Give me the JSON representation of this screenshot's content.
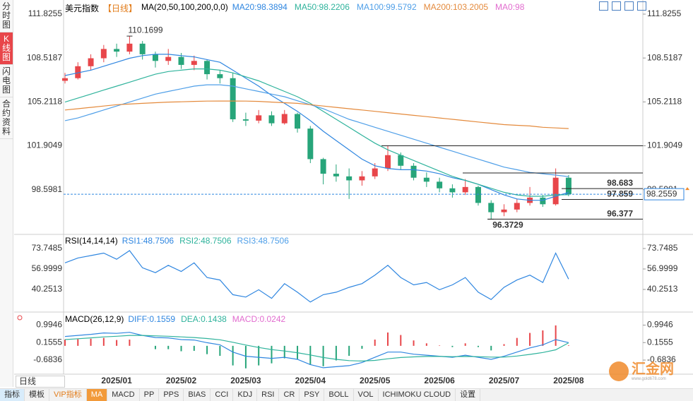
{
  "sidebar": {
    "tabs": [
      "分时图",
      "K线图",
      "闪电图",
      "合约资料"
    ]
  },
  "toolbar": {
    "period": "日线",
    "tabs": [
      "指标",
      "模板",
      "VIP指标",
      "MA",
      "MACD",
      "PP",
      "PPS",
      "BIAS",
      "CCI",
      "KDJ",
      "RSI",
      "CR",
      "PSY",
      "BOLL",
      "VOL",
      "ICHIMOKU CLOUD",
      "设置"
    ]
  },
  "watermark": {
    "text": "汇金网",
    "url": "www.gold678.com"
  },
  "chart_data": [
    {
      "type": "candlestick",
      "symbol": "美元指数",
      "period": "【日线】",
      "ma_label": "MA(20,50,100,200,0,0)",
      "categories": [
        null,
        null,
        null,
        null,
        "2025/01",
        null,
        null,
        null,
        null,
        "2025/02",
        null,
        null,
        null,
        null,
        "2025/03",
        null,
        null,
        null,
        null,
        "2025/04",
        null,
        null,
        null,
        null,
        "2025/05",
        null,
        null,
        null,
        null,
        "2025/06",
        null,
        null,
        null,
        null,
        "2025/07",
        null,
        null,
        null,
        null,
        "2025/08"
      ],
      "open": [
        106.8,
        107.0,
        107.9,
        108.5,
        109.2,
        109.0,
        109.6,
        108.8,
        108.3,
        108.6,
        108.0,
        108.3,
        107.3,
        107.0,
        103.9,
        103.8,
        104.2,
        103.6,
        104.3,
        103.2,
        100.9,
        99.8,
        99.6,
        99.3,
        99.6,
        100.2,
        101.2,
        100.4,
        99.5,
        99.2,
        98.7,
        98.4,
        98.8,
        97.6,
        96.9,
        97.1,
        97.6,
        98.0,
        97.5,
        99.5
      ],
      "high": [
        107.4,
        108.2,
        108.8,
        109.5,
        109.6,
        110.1699,
        109.8,
        109.0,
        109.2,
        108.9,
        108.7,
        108.4,
        107.6,
        107.4,
        104.4,
        104.6,
        104.5,
        104.6,
        104.4,
        103.4,
        101.0,
        100.5,
        100.2,
        100.0,
        100.6,
        101.9,
        101.4,
        100.6,
        99.9,
        99.5,
        99.0,
        99.4,
        98.9,
        97.8,
        97.5,
        97.9,
        98.8,
        98.2,
        100.2,
        99.7
      ],
      "low": [
        106.6,
        106.9,
        107.6,
        108.2,
        108.6,
        108.8,
        108.4,
        107.8,
        108.0,
        107.7,
        107.6,
        106.9,
        106.6,
        103.7,
        103.4,
        103.6,
        103.4,
        103.5,
        102.9,
        100.6,
        99.0,
        99.2,
        97.9,
        98.9,
        99.4,
        100.0,
        100.1,
        99.3,
        98.8,
        98.4,
        98.0,
        98.2,
        97.4,
        96.3729,
        96.6,
        96.9,
        97.4,
        97.3,
        97.4,
        98.1
      ],
      "close": [
        107.0,
        107.9,
        108.5,
        109.2,
        109.0,
        109.6,
        108.8,
        108.3,
        108.6,
        108.0,
        108.3,
        107.3,
        107.0,
        103.9,
        103.8,
        104.2,
        103.6,
        104.3,
        103.2,
        100.9,
        99.8,
        99.6,
        99.3,
        99.6,
        100.2,
        101.2,
        100.4,
        99.5,
        99.2,
        98.7,
        98.4,
        98.8,
        97.6,
        96.9,
        97.1,
        97.6,
        98.0,
        97.5,
        99.5,
        98.2559
      ],
      "up_color": "#e8464a",
      "down_color": "#27a57a",
      "series": [
        {
          "name": "MA20:98.3894",
          "color": "#2f86e0",
          "values": [
            107.2,
            107.4,
            107.6,
            107.9,
            108.2,
            108.5,
            108.7,
            108.8,
            108.8,
            108.7,
            108.6,
            108.4,
            108.2,
            107.6,
            107.0,
            106.4,
            105.7,
            105.1,
            104.5,
            103.8,
            103.0,
            102.3,
            101.6,
            100.9,
            100.4,
            100.2,
            100.1,
            100.1,
            100.0,
            99.8,
            99.5,
            99.3,
            99.0,
            98.6,
            98.2,
            97.9,
            97.8,
            97.8,
            98.1,
            98.3894
          ]
        },
        {
          "name": "MA50:98.2206",
          "color": "#2fb39c",
          "values": [
            105.2,
            105.5,
            105.8,
            106.1,
            106.4,
            106.7,
            107.0,
            107.3,
            107.5,
            107.6,
            107.7,
            107.7,
            107.6,
            107.4,
            107.1,
            106.8,
            106.4,
            106.0,
            105.6,
            105.1,
            104.5,
            103.9,
            103.3,
            102.7,
            102.1,
            101.6,
            101.2,
            100.8,
            100.4,
            100.0,
            99.6,
            99.3,
            99.0,
            98.7,
            98.4,
            98.2,
            98.1,
            98.1,
            98.2,
            98.2206
          ]
        },
        {
          "name": "MA100:99.5792",
          "color": "#4f9fe8",
          "values": [
            103.8,
            104.0,
            104.3,
            104.6,
            104.9,
            105.2,
            105.5,
            105.8,
            106.0,
            106.2,
            106.4,
            106.5,
            106.5,
            106.4,
            106.2,
            106.0,
            105.8,
            105.6,
            105.3,
            105.0,
            104.7,
            104.3,
            103.9,
            103.6,
            103.3,
            103.0,
            102.7,
            102.4,
            102.1,
            101.8,
            101.5,
            101.2,
            100.9,
            100.6,
            100.3,
            100.1,
            99.9,
            99.8,
            99.7,
            99.5792
          ]
        },
        {
          "name": "MA200:103.2005",
          "color": "#e48a3c",
          "values": [
            104.6,
            104.7,
            104.8,
            104.9,
            105.0,
            105.05,
            105.1,
            105.15,
            105.2,
            105.22,
            105.25,
            105.27,
            105.28,
            105.28,
            105.27,
            105.25,
            105.2,
            105.15,
            105.1,
            105.0,
            104.9,
            104.8,
            104.7,
            104.6,
            104.5,
            104.4,
            104.3,
            104.2,
            104.1,
            104.0,
            103.9,
            103.8,
            103.7,
            103.6,
            103.5,
            103.45,
            103.4,
            103.3,
            103.25,
            103.2005
          ]
        },
        {
          "name": "MA0:98",
          "color": "#e26ccf"
        }
      ],
      "high_label": 110.1699,
      "low_label": 96.3729,
      "last": 98.2559,
      "levels": [
        101.9049,
        99.86
      ],
      "labeled_levels": [
        98.683,
        97.859,
        96.377
      ],
      "ylim": [
        95.3355,
        111.8255
      ],
      "yticks": [
        98.5981,
        101.9049,
        105.2118,
        108.5187,
        111.8255
      ]
    },
    {
      "type": "line",
      "title": "RSI(14,14,14)",
      "series": [
        {
          "name": "RSI1:48.7506",
          "color": "#2f86e0",
          "values": [
            62,
            66,
            68,
            70,
            65,
            72,
            58,
            54,
            60,
            55,
            62,
            50,
            48,
            36,
            34,
            40,
            33,
            45,
            38,
            30,
            36,
            38,
            42,
            45,
            52,
            60,
            50,
            44,
            46,
            40,
            44,
            50,
            38,
            32,
            42,
            48,
            52,
            46,
            70,
            48.7506
          ]
        },
        {
          "name": "RSI2:48.7506",
          "color": "#2fb39c"
        },
        {
          "name": "RSI3:48.7506",
          "color": "#4f9fe8"
        }
      ],
      "ylim": [
        22.93,
        83.57
      ],
      "yticks": [
        40.2513,
        56.9999,
        73.7485
      ]
    },
    {
      "type": "macd",
      "title": "MACD(26,12,9)",
      "series": [
        {
          "name": "DIFF:0.1559",
          "color": "#2f86e0",
          "values": [
            0.45,
            0.5,
            0.55,
            0.62,
            0.6,
            0.65,
            0.5,
            0.4,
            0.38,
            0.3,
            0.28,
            0.15,
            0.05,
            -0.3,
            -0.5,
            -0.55,
            -0.6,
            -0.55,
            -0.65,
            -0.9,
            -1.05,
            -1.0,
            -0.95,
            -0.8,
            -0.55,
            -0.3,
            -0.3,
            -0.4,
            -0.45,
            -0.5,
            -0.55,
            -0.45,
            -0.55,
            -0.65,
            -0.5,
            -0.3,
            -0.1,
            0.05,
            0.3,
            0.1559
          ]
        },
        {
          "name": "DEA:0.1438",
          "color": "#2fb39c",
          "values": [
            0.3,
            0.34,
            0.38,
            0.43,
            0.46,
            0.5,
            0.5,
            0.48,
            0.46,
            0.43,
            0.4,
            0.35,
            0.29,
            0.17,
            0.04,
            -0.08,
            -0.18,
            -0.25,
            -0.33,
            -0.44,
            -0.56,
            -0.65,
            -0.71,
            -0.73,
            -0.7,
            -0.62,
            -0.56,
            -0.53,
            -0.51,
            -0.51,
            -0.52,
            -0.51,
            -0.52,
            -0.54,
            -0.54,
            -0.49,
            -0.41,
            -0.32,
            -0.19,
            0.1438
          ]
        },
        {
          "name": "MACD:0.0242",
          "color": "#e26ccf",
          "up_color": "#e8464a",
          "down_color": "#27a57a",
          "values": [
            0.3,
            0.32,
            0.34,
            0.38,
            0.28,
            0.3,
            0,
            -0.16,
            -0.16,
            -0.26,
            -0.24,
            -0.4,
            -0.48,
            -0.94,
            -1.08,
            -0.94,
            -0.84,
            -0.6,
            -0.64,
            -0.92,
            -0.98,
            -0.7,
            -0.48,
            -0.14,
            0.3,
            0.64,
            0.52,
            0.26,
            0.12,
            0.02,
            -0.06,
            0.12,
            -0.06,
            -0.22,
            0.08,
            0.38,
            0.62,
            0.74,
            0.98,
            0.0242
          ]
        }
      ],
      "ylim": [
        -1.36,
        1.52
      ],
      "yticks": [
        -0.6836,
        0.1555,
        0.9946
      ]
    }
  ]
}
